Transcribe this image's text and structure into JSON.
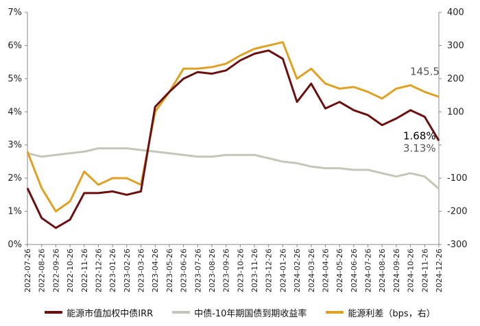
{
  "chart_data": {
    "type": "line",
    "x": [
      "2022-07-26",
      "2022-08-26",
      "2022-09-26",
      "2022-10-26",
      "2022-11-26",
      "2022-12-26",
      "2023-01-26",
      "2023-02-26",
      "2023-03-26",
      "2023-04-26",
      "2023-05-26",
      "2023-06-26",
      "2023-07-26",
      "2023-08-26",
      "2023-09-26",
      "2023-10-26",
      "2023-11-26",
      "2023-12-26",
      "2024-01-26",
      "2024-02-26",
      "2024-03-26",
      "2024-04-26",
      "2024-05-26",
      "2024-06-26",
      "2024-07-26",
      "2024-08-26",
      "2024-09-26",
      "2024-10-26",
      "2024-11-26",
      "2024-12-26"
    ],
    "y_left": {
      "ticks": [
        "0%",
        "1%",
        "2%",
        "3%",
        "4%",
        "5%",
        "6%",
        "7%"
      ],
      "min": 0,
      "max": 7
    },
    "y_right": {
      "ticks": [
        "-300",
        "-200",
        "-100",
        "",
        "100",
        "200",
        "300",
        "400"
      ],
      "min": -300,
      "max": 400
    },
    "series": [
      {
        "name": "能源市值加权中债IRR",
        "axis": "left",
        "color": "#6b0f0f",
        "values": [
          1.7,
          0.8,
          0.5,
          0.75,
          1.55,
          1.55,
          1.6,
          1.5,
          1.6,
          4.15,
          4.6,
          5.0,
          5.2,
          5.15,
          5.25,
          5.55,
          5.75,
          5.85,
          5.6,
          4.3,
          4.85,
          4.1,
          4.3,
          4.05,
          3.9,
          3.6,
          3.8,
          4.05,
          3.85,
          3.13
        ]
      },
      {
        "name": "中债-10年期国债到期收益率",
        "axis": "left",
        "color": "#c3c6b8",
        "values": [
          2.75,
          2.65,
          2.7,
          2.75,
          2.8,
          2.9,
          2.9,
          2.9,
          2.85,
          2.8,
          2.75,
          2.7,
          2.65,
          2.65,
          2.7,
          2.7,
          2.7,
          2.6,
          2.5,
          2.45,
          2.35,
          2.3,
          2.3,
          2.25,
          2.25,
          2.15,
          2.05,
          2.15,
          2.05,
          1.68
        ]
      },
      {
        "name": "能源利差（bps，右）",
        "axis": "right",
        "color": "#e0a021",
        "values": [
          -20,
          -130,
          -200,
          -170,
          -80,
          -120,
          -100,
          -100,
          -120,
          100,
          160,
          230,
          230,
          235,
          245,
          270,
          290,
          300,
          310,
          200,
          230,
          185,
          170,
          175,
          160,
          140,
          170,
          180,
          160,
          145.5
        ]
      }
    ],
    "annotations": [
      {
        "text": "145.5",
        "color": "#555555"
      },
      {
        "text": "3.13%",
        "color": "#555555"
      },
      {
        "text": "1.68%",
        "color": "#000000"
      }
    ],
    "legend": {
      "placement": "bottom"
    },
    "grid": false
  }
}
